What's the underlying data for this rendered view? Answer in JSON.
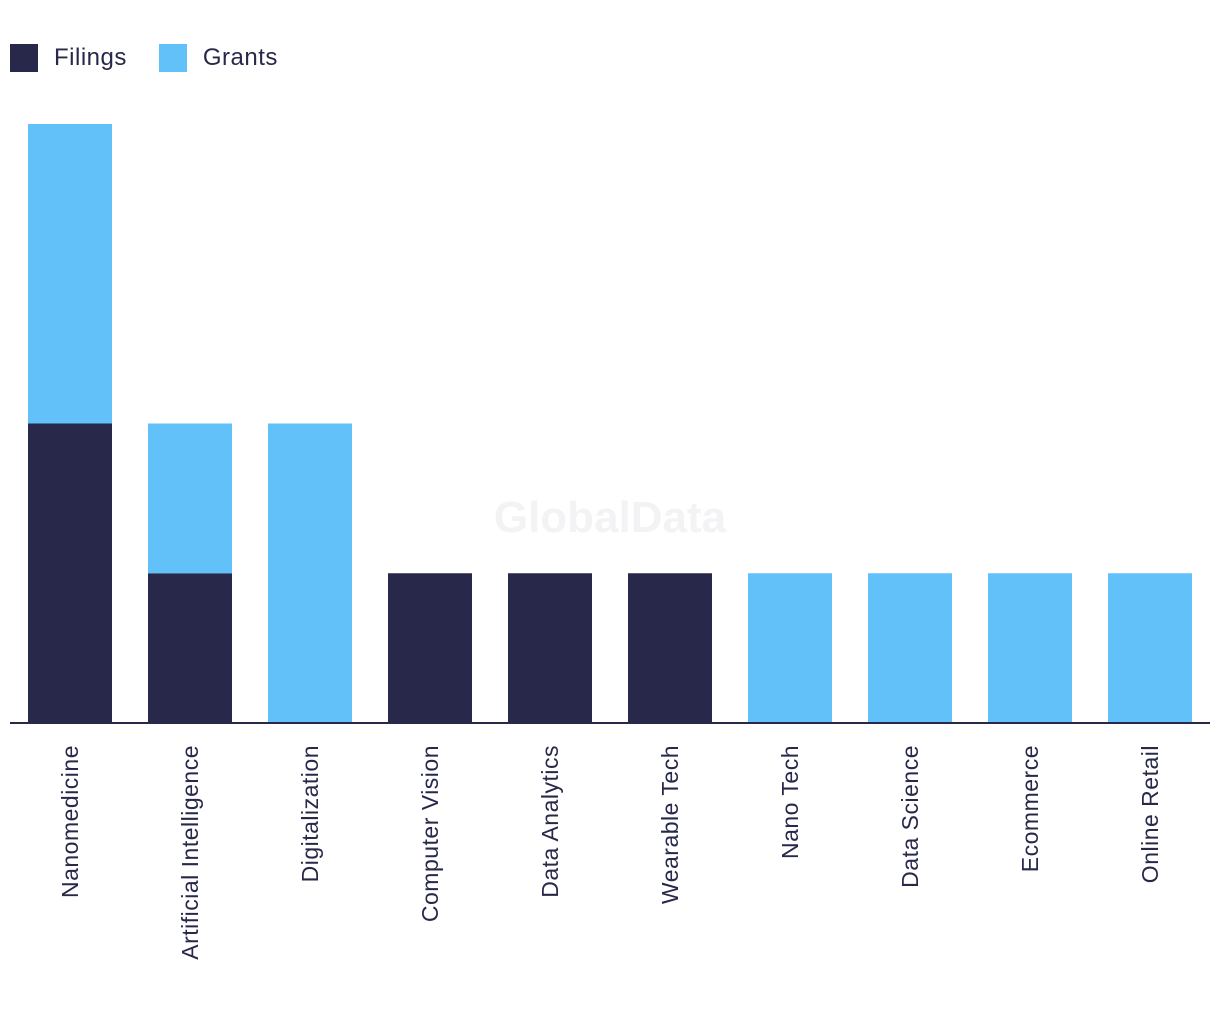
{
  "legend": {
    "filings_label": "Filings",
    "grants_label": "Grants"
  },
  "watermark": "GlobalData",
  "colors": {
    "filings": "#27284a",
    "grants": "#62c1f8",
    "axis": "#27284a"
  },
  "chart_data": {
    "type": "bar",
    "stacked": true,
    "categories": [
      "Nanomedicine",
      "Artificial Intelligence",
      "Digitalization",
      "Computer Vision",
      "Data Analytics",
      "Wearable Tech",
      "Nano Tech",
      "Data Science",
      "Ecommerce",
      "Online Retail"
    ],
    "series": [
      {
        "name": "Filings",
        "values": [
          2,
          1,
          0,
          1,
          1,
          1,
          0,
          0,
          0,
          0
        ]
      },
      {
        "name": "Grants",
        "values": [
          2,
          1,
          2,
          0,
          0,
          0,
          1,
          1,
          1,
          1
        ]
      }
    ],
    "title": "",
    "xlabel": "",
    "ylabel": "",
    "ylim": [
      0,
      4
    ],
    "grid": false,
    "legend_position": "top-left"
  }
}
